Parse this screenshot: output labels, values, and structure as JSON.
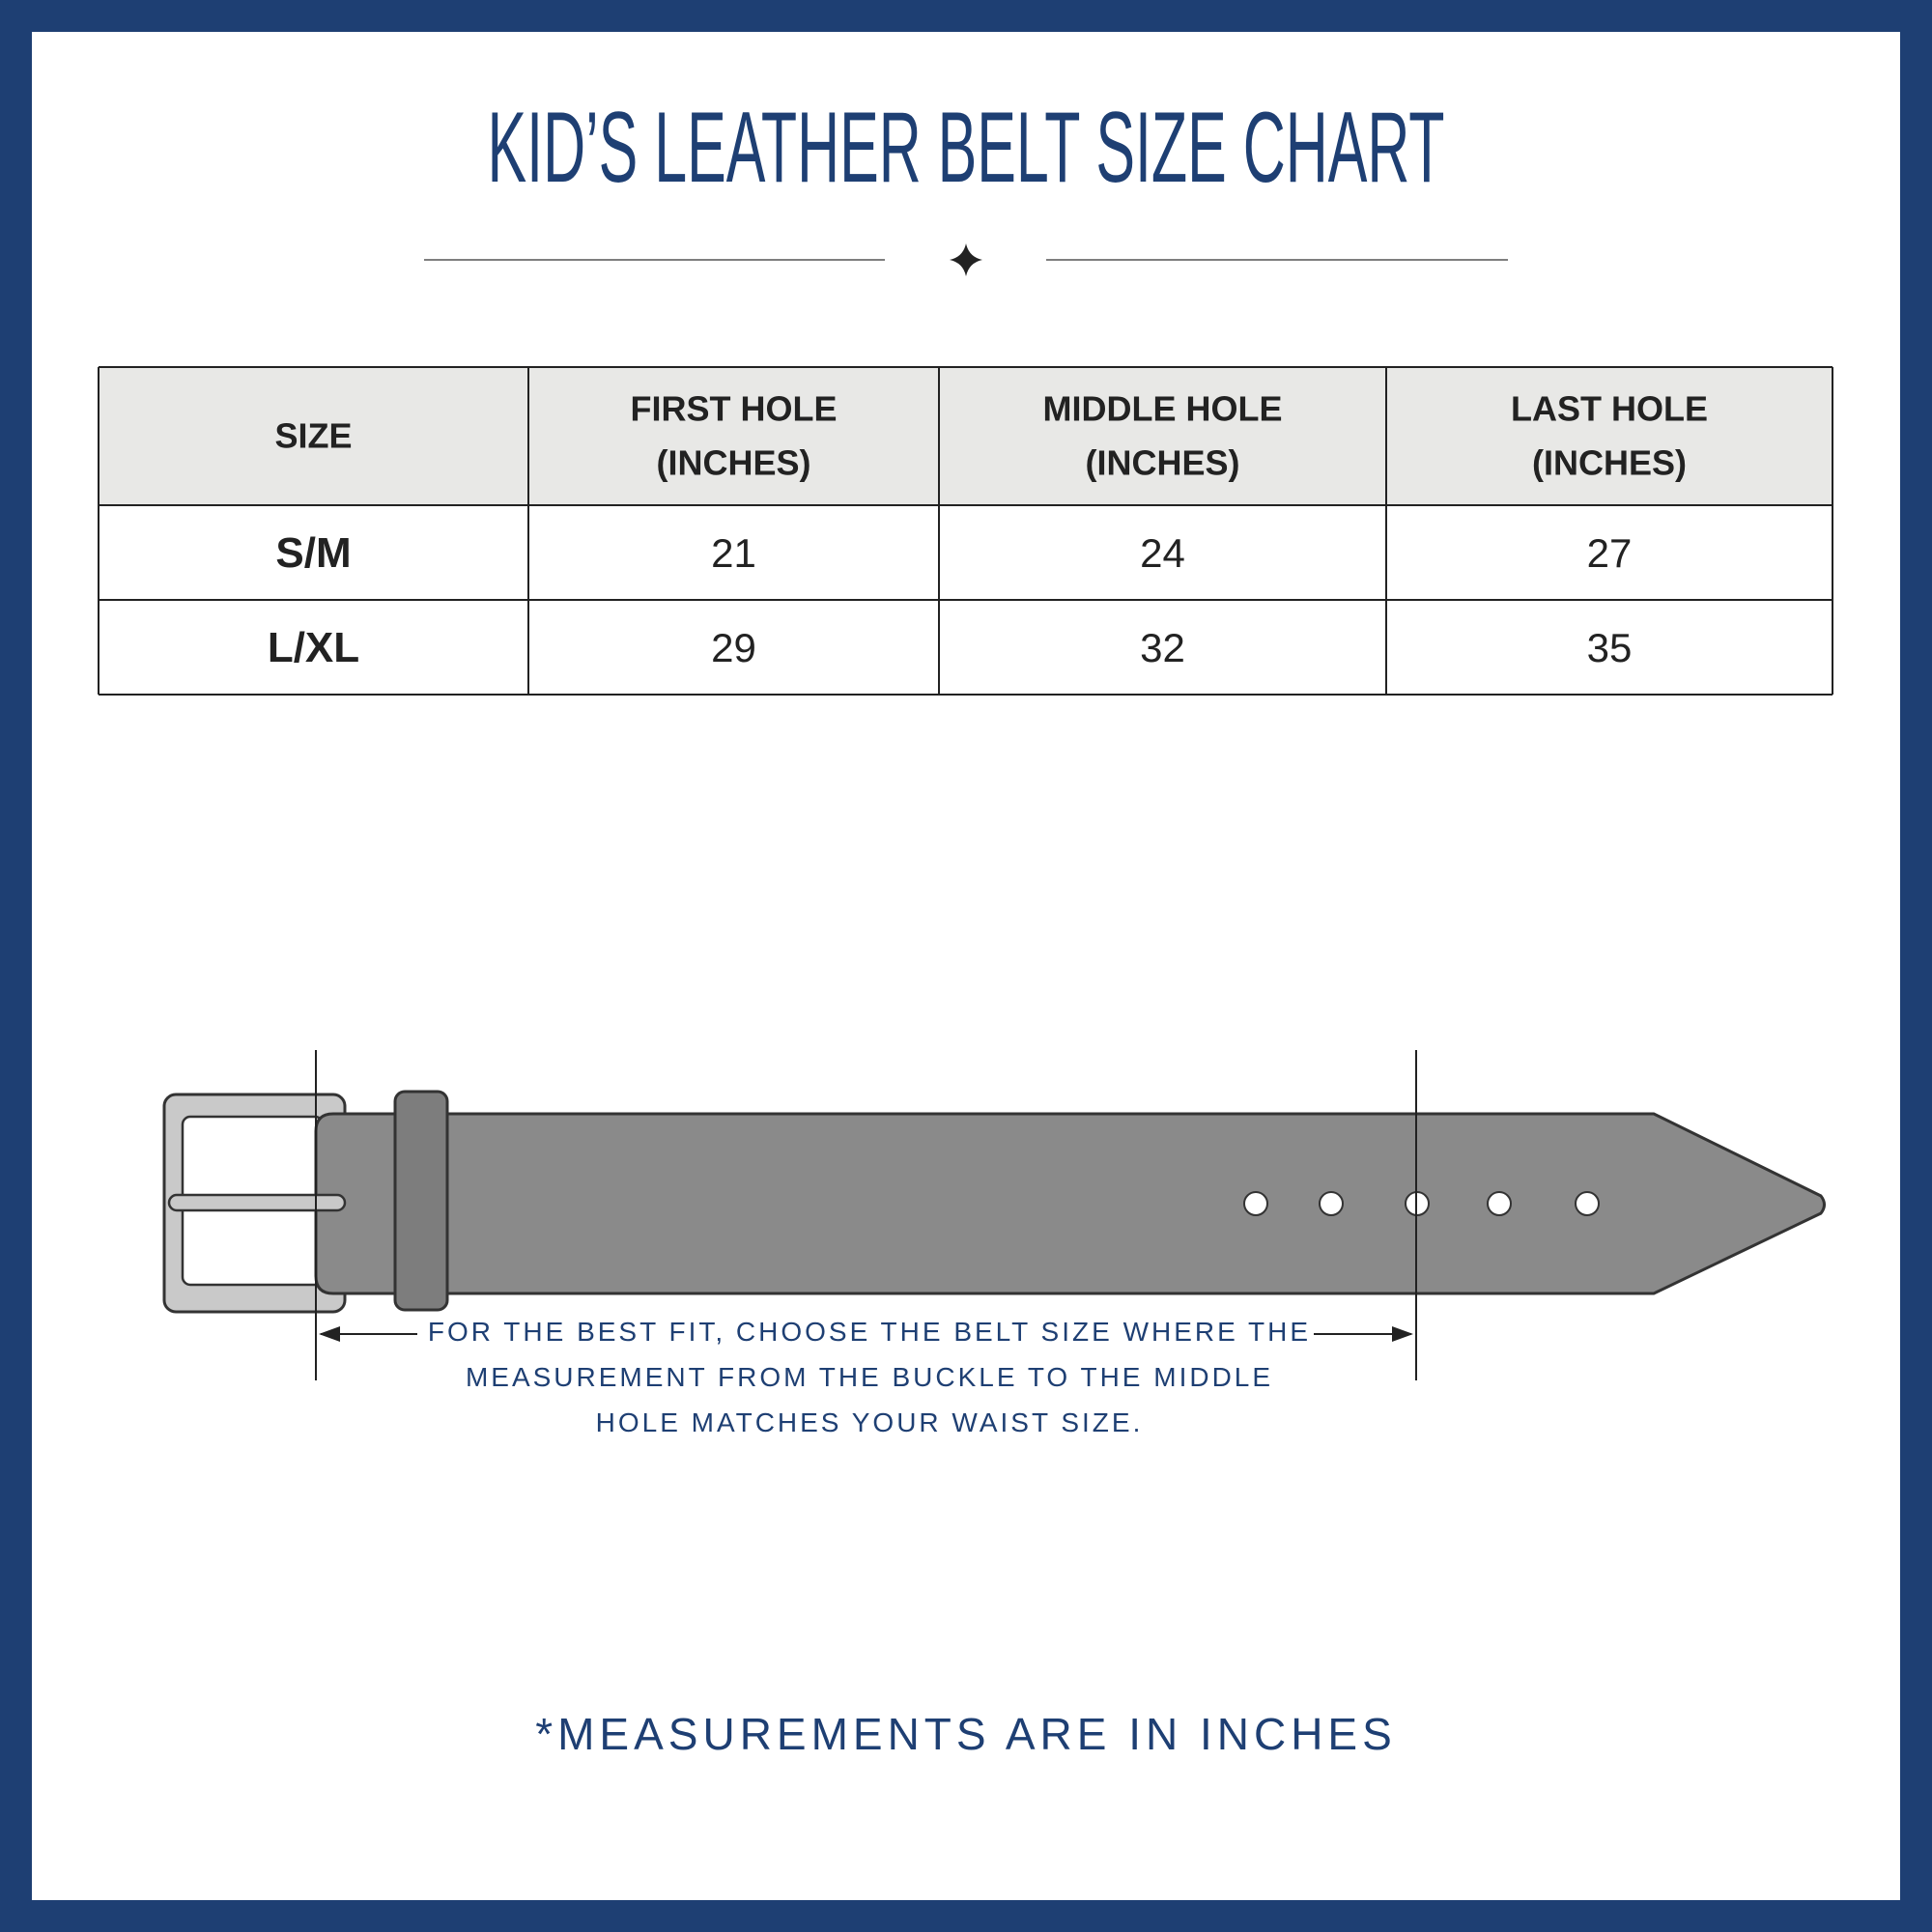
{
  "title": "KID’S LEATHER BELT SIZE CHART",
  "table": {
    "header": [
      [
        "SIZE"
      ],
      [
        "FIRST HOLE",
        "(INCHES)"
      ],
      [
        "MIDDLE HOLE",
        "(INCHES)"
      ],
      [
        "LAST HOLE",
        "(INCHES)"
      ]
    ],
    "rows": [
      [
        "S/M",
        21,
        24,
        27
      ],
      [
        "L/XL",
        29,
        32,
        35
      ]
    ]
  },
  "note": "FOR THE BEST FIT, CHOOSE THE BELT SIZE WHERE THE MEASUREMENT FROM THE BUCKLE TO THE MIDDLE HOLE MATCHES YOUR WAIST SIZE.",
  "footer": "*MEASUREMENTS ARE IN INCHES"
}
